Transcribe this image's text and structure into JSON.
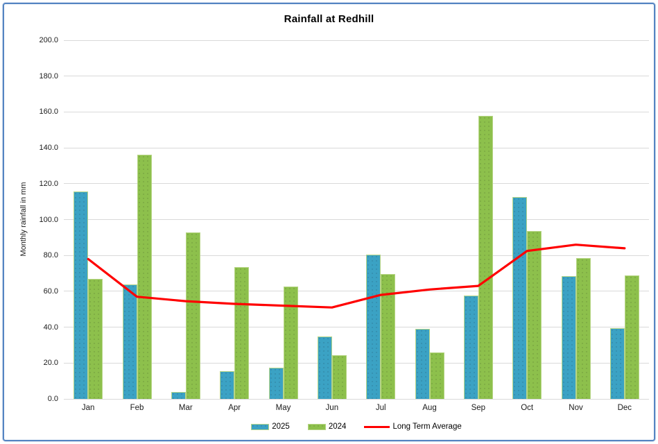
{
  "title": "Rainfall at Redhill",
  "colors": {
    "frame_border": "#5585C2",
    "gridline": "#d9d9d9",
    "bar_border": "#b7d586",
    "series_2025": "#3BA2C4",
    "series_2024": "#8DC04C",
    "long_term_average": "#FF0000"
  },
  "chart_data": {
    "type": "bar",
    "title": "Rainfall at Redhill",
    "xlabel": "",
    "ylabel": "Monthly rainfall in mm",
    "categories": [
      "Jan",
      "Feb",
      "Mar",
      "Apr",
      "May",
      "Jun",
      "Jul",
      "Aug",
      "Sep",
      "Oct",
      "Nov",
      "Dec"
    ],
    "series": [
      {
        "name": "2025",
        "type": "bar",
        "color": "#3BA2C4",
        "values": [
          115.5,
          64.0,
          4.0,
          15.5,
          17.5,
          35.0,
          80.5,
          39.0,
          57.5,
          112.5,
          68.5,
          39.5
        ]
      },
      {
        "name": "2024",
        "type": "bar",
        "color": "#8DC04C",
        "values": [
          67.0,
          136.0,
          93.0,
          73.5,
          62.5,
          24.5,
          69.5,
          26.0,
          158.0,
          93.5,
          78.5,
          69.0
        ]
      },
      {
        "name": "Long Term Average",
        "type": "line",
        "color": "#FF0000",
        "values": [
          78.0,
          57.0,
          54.5,
          53.0,
          52.0,
          51.0,
          58.0,
          61.0,
          63.0,
          82.5,
          86.0,
          84.0
        ]
      }
    ],
    "ylim": [
      0,
      200
    ],
    "ytick_step": 20,
    "ytick_labels": [
      "0.0",
      "20.0",
      "40.0",
      "60.0",
      "80.0",
      "100.0",
      "120.0",
      "140.0",
      "160.0",
      "180.0",
      "200.0"
    ],
    "grid": true,
    "legend_position": "bottom"
  }
}
